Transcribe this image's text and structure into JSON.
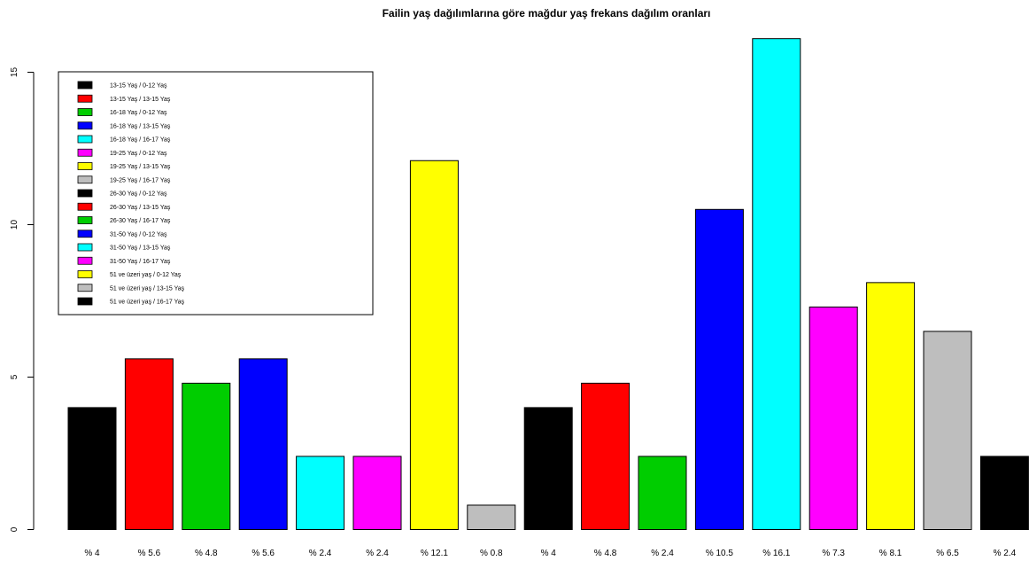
{
  "chart_data": {
    "type": "bar",
    "title": "Failin yaş dağılımlarına göre mağdur yaş frekans dağılım oranları",
    "xlabel": "",
    "ylabel": "",
    "ylim": [
      0,
      16.1
    ],
    "yticks": [
      0,
      5,
      10,
      15
    ],
    "grid": false,
    "legend_position": "top-left",
    "categories": [
      "% 4",
      "% 5.6",
      "% 4.8",
      "% 5.6",
      "% 2.4",
      "% 2.4",
      "% 12.1",
      "% 0.8",
      "% 4",
      "% 4.8",
      "% 2.4",
      "% 10.5",
      "% 16.1",
      "% 7.3",
      "% 8.1",
      "% 6.5",
      "% 2.4"
    ],
    "values": [
      4,
      5.6,
      4.8,
      5.6,
      2.4,
      2.4,
      12.1,
      0.8,
      4,
      4.8,
      2.4,
      10.5,
      16.1,
      7.3,
      8.1,
      6.5,
      2.4
    ],
    "colors": [
      "#000000",
      "#ff0000",
      "#00cd00",
      "#0000ff",
      "#00ffff",
      "#ff00ff",
      "#ffff00",
      "#bebebe",
      "#000000",
      "#ff0000",
      "#00cd00",
      "#0000ff",
      "#00ffff",
      "#ff00ff",
      "#ffff00",
      "#bebebe",
      "#000000"
    ],
    "legend": [
      {
        "label": "13-15 Yaş / 0-12 Yaş",
        "color": "#000000"
      },
      {
        "label": "13-15 Yaş / 13-15 Yaş",
        "color": "#ff0000"
      },
      {
        "label": "16-18 Yaş / 0-12 Yaş",
        "color": "#00cd00"
      },
      {
        "label": "16-18 Yaş / 13-15 Yaş",
        "color": "#0000ff"
      },
      {
        "label": "16-18 Yaş / 16-17 Yaş",
        "color": "#00ffff"
      },
      {
        "label": "19-25 Yaş / 0-12 Yaş",
        "color": "#ff00ff"
      },
      {
        "label": "19-25 Yaş / 13-15 Yaş",
        "color": "#ffff00"
      },
      {
        "label": "19-25 Yaş / 16-17 Yaş",
        "color": "#bebebe"
      },
      {
        "label": "26-30 Yaş / 0-12 Yaş",
        "color": "#000000"
      },
      {
        "label": "26-30 Yaş / 13-15 Yaş",
        "color": "#ff0000"
      },
      {
        "label": "26-30 Yaş / 16-17 Yaş",
        "color": "#00cd00"
      },
      {
        "label": "31-50 Yaş / 0-12 Yaş",
        "color": "#0000ff"
      },
      {
        "label": "31-50 Yaş / 13-15 Yaş",
        "color": "#00ffff"
      },
      {
        "label": "31-50 Yaş / 16-17 Yaş",
        "color": "#ff00ff"
      },
      {
        "label": "51 ve üzeri yaş / 0-12 Yaş",
        "color": "#ffff00"
      },
      {
        "label": "51 ve üzeri yaş / 13-15 Yaş",
        "color": "#bebebe"
      },
      {
        "label": "51 ve üzeri yaş / 16-17 Yaş",
        "color": "#000000"
      }
    ]
  }
}
